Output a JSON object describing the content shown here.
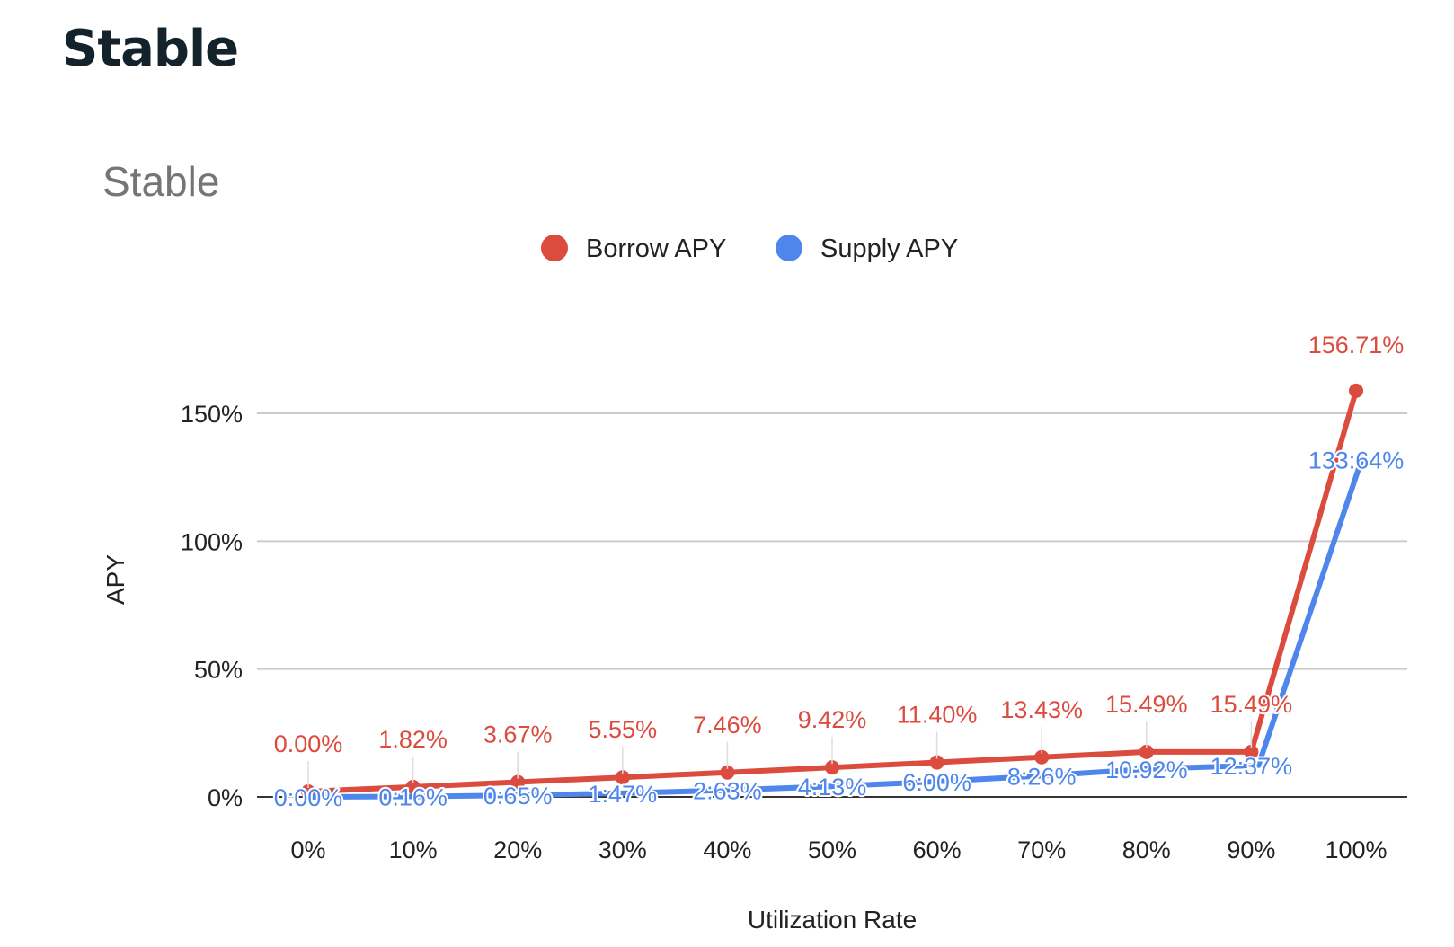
{
  "page": {
    "title": "Stable"
  },
  "chart_data": {
    "type": "line",
    "title": "Stable",
    "xlabel": "Utilization Rate",
    "ylabel": "APY",
    "categories": [
      "0%",
      "10%",
      "20%",
      "30%",
      "40%",
      "50%",
      "60%",
      "70%",
      "80%",
      "90%",
      "100%"
    ],
    "y_ticks": [
      0,
      50,
      100,
      150
    ],
    "y_tick_labels": [
      "0%",
      "50%",
      "100%",
      "150%"
    ],
    "ylim": [
      0,
      160
    ],
    "grid": true,
    "legend_position": "top",
    "series": [
      {
        "name": "Borrow APY",
        "color": "#db4c3f",
        "values": [
          0.0,
          1.82,
          3.67,
          5.55,
          7.46,
          9.42,
          11.4,
          13.43,
          15.49,
          15.49,
          156.71
        ],
        "labels": [
          "0.00%",
          "1.82%",
          "3.67%",
          "5.55%",
          "7.46%",
          "9.42%",
          "11.40%",
          "13.43%",
          "15.49%",
          "15.49%",
          "156.71%"
        ]
      },
      {
        "name": "Supply APY",
        "color": "#4f86ec",
        "values": [
          0.0,
          0.16,
          0.65,
          1.47,
          2.63,
          4.13,
          6.0,
          8.26,
          10.92,
          12.37,
          133.64
        ],
        "labels": [
          "0:00%",
          "0:16%",
          "0:65%",
          "1:47%",
          "2:63%",
          "4:13%",
          "6:00%",
          "8:26%",
          "10:92%",
          "12:37%",
          "133:64%"
        ]
      }
    ]
  }
}
